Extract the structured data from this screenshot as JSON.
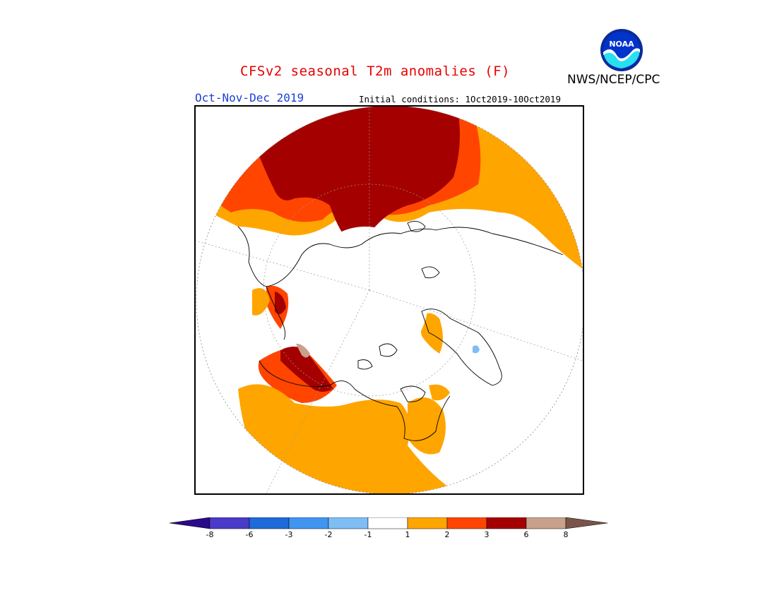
{
  "header": {
    "title": "CFSv2 seasonal T2m anomalies (F)",
    "agency": "NWS/NCEP/CPC",
    "period": "Oct-Nov-Dec 2019",
    "initial_conditions": "Initial conditions: 1Oct2019-10Oct2019"
  },
  "logo": {
    "text": "NOAA",
    "icon": "noaa-logo-icon"
  },
  "map": {
    "projection": "north-polar-stereographic",
    "variable": "2m temperature anomaly (F)"
  },
  "colorbar": {
    "tick_labels": [
      "-8",
      "-6",
      "-3",
      "-2",
      "-1",
      "1",
      "2",
      "3",
      "6",
      "8"
    ],
    "colors": [
      "#2b0a8a",
      "#4a3cc8",
      "#1e6ad8",
      "#3f95f0",
      "#7fbdf5",
      "#ffffff",
      "#ffa500",
      "#ff4500",
      "#a50000",
      "#c8a08c",
      "#7a5448"
    ]
  }
}
